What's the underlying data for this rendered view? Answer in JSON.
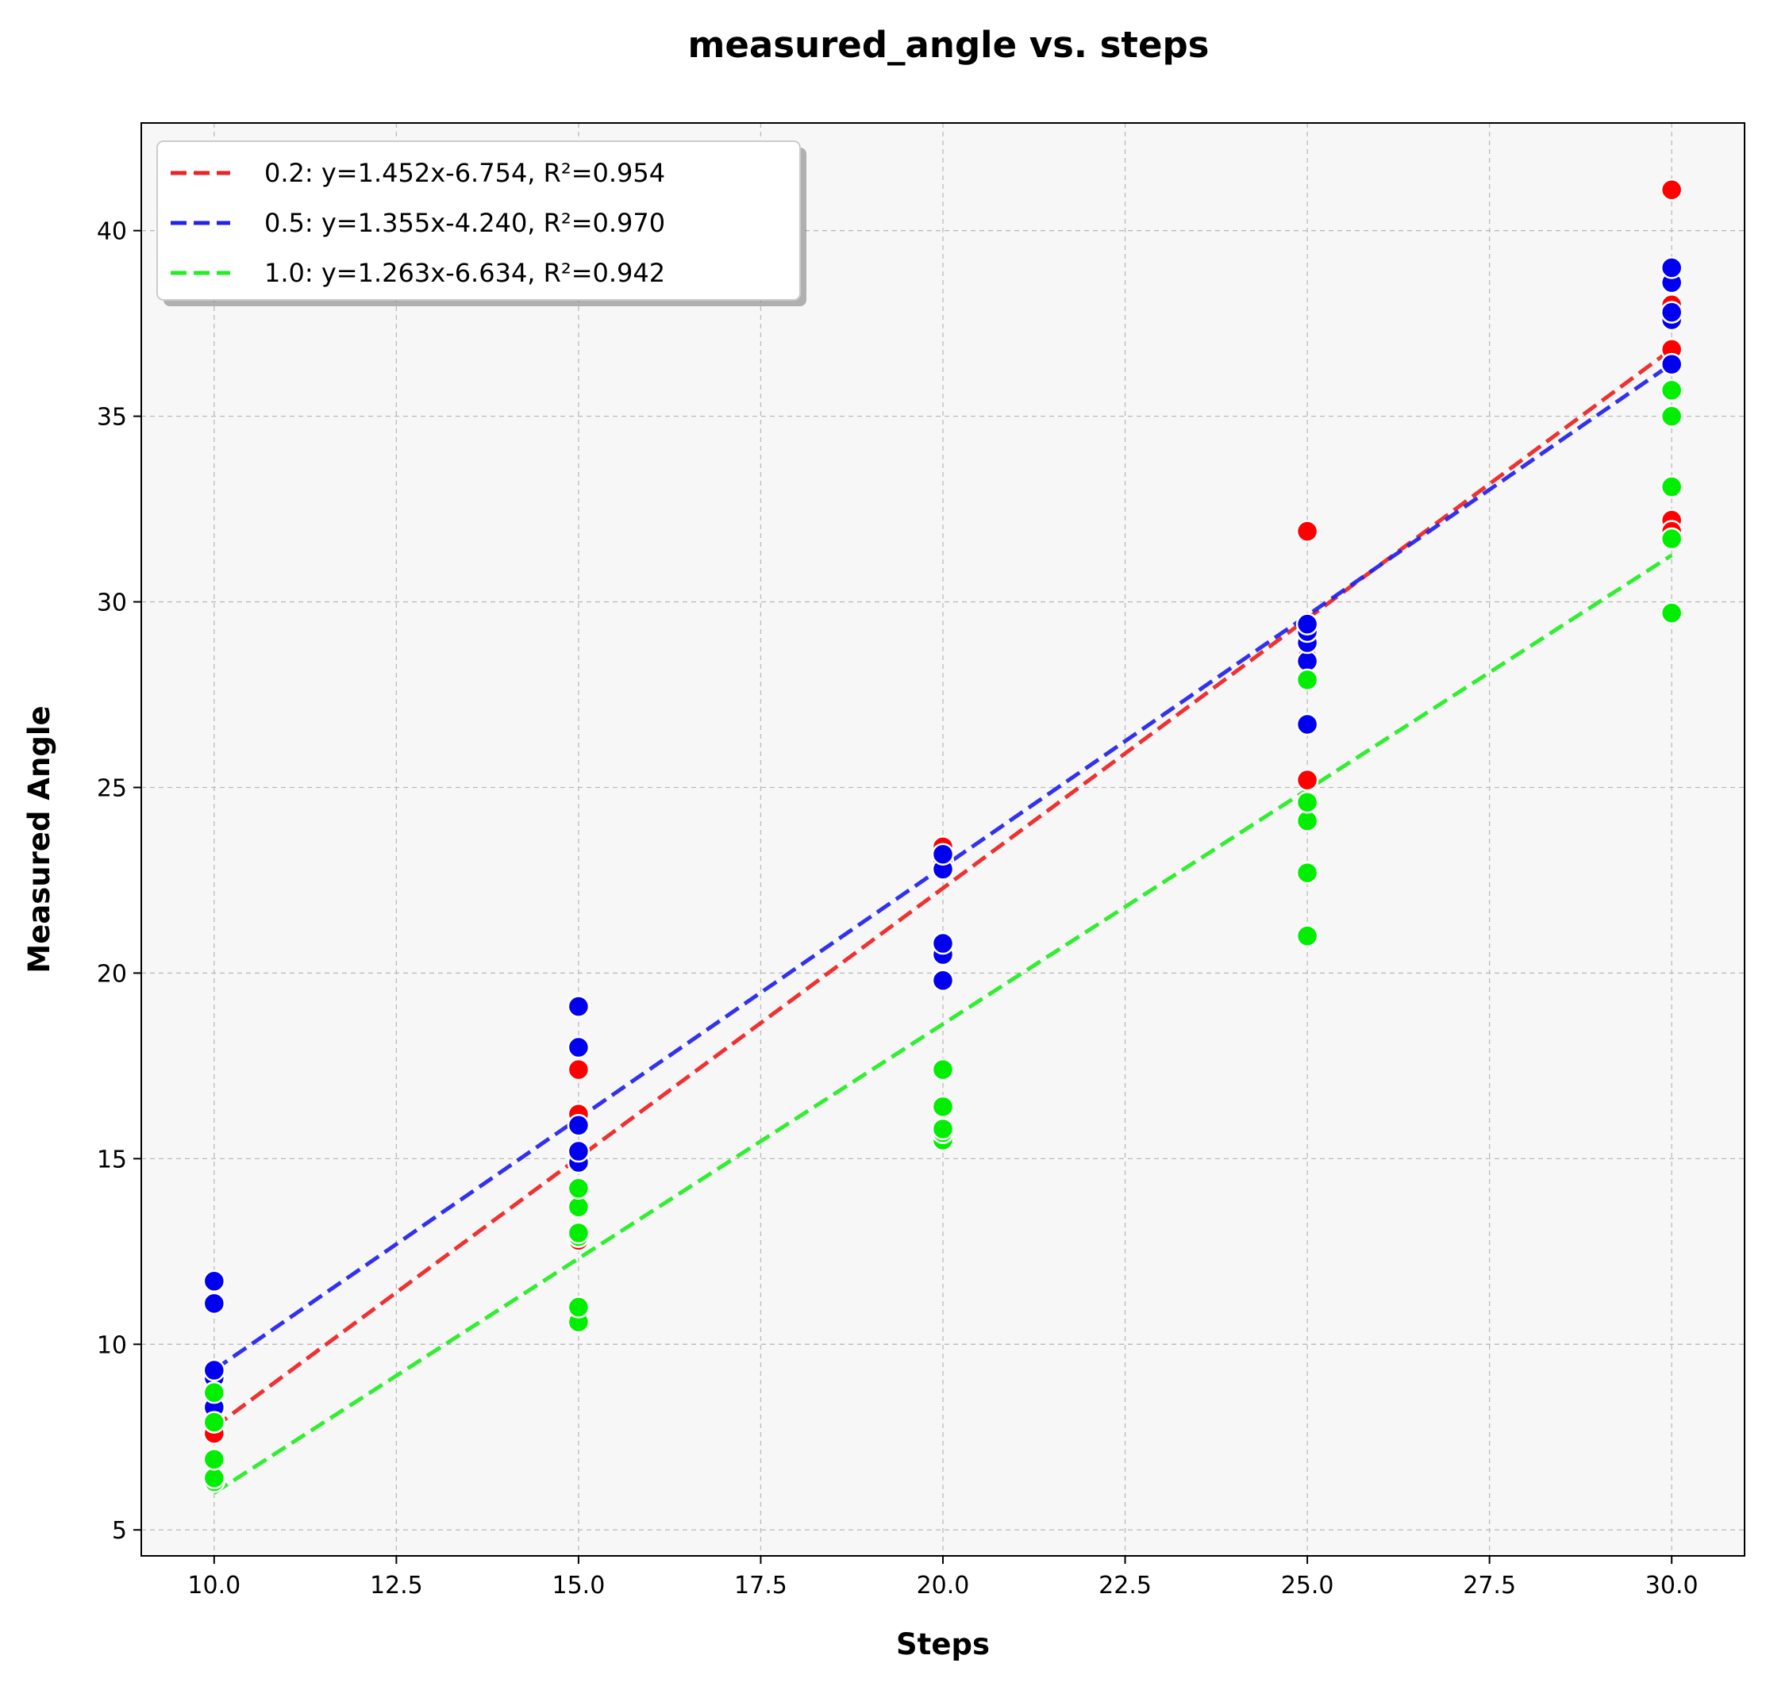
{
  "chart_data": {
    "type": "scatter",
    "title": "measured_angle vs. steps",
    "xlabel": "Steps",
    "ylabel": "Measured Angle",
    "xlim": [
      9.0,
      31.0
    ],
    "ylim": [
      4.3,
      42.9
    ],
    "xticks": [
      10.0,
      12.5,
      15.0,
      17.5,
      20.0,
      22.5,
      25.0,
      27.5,
      30.0
    ],
    "xtick_labels": [
      "10.0",
      "12.5",
      "15.0",
      "17.5",
      "20.0",
      "22.5",
      "25.0",
      "27.5",
      "30.0"
    ],
    "yticks": [
      5,
      10,
      15,
      20,
      25,
      30,
      35,
      40
    ],
    "ytick_labels": [
      "5",
      "10",
      "15",
      "20",
      "25",
      "30",
      "35",
      "40"
    ],
    "grid": true,
    "legend_position": "top-left",
    "series": [
      {
        "key": "0.2",
        "color": "#ff0000",
        "line_color": "#ee2222",
        "fit": {
          "slope": 1.452,
          "intercept": -6.754,
          "r2": 0.954
        },
        "legend_label": "0.2: y=1.452x-6.754, R²=0.954",
        "points": [
          [
            10,
            7.6
          ],
          [
            10,
            7.9
          ],
          [
            10,
            8.2
          ],
          [
            10,
            8.6
          ],
          [
            15,
            12.8
          ],
          [
            15,
            13.0
          ],
          [
            15,
            14.9
          ],
          [
            15,
            16.0
          ],
          [
            15,
            16.2
          ],
          [
            15,
            17.4
          ],
          [
            20,
            20.6
          ],
          [
            20,
            22.8
          ],
          [
            20,
            23.0
          ],
          [
            20,
            23.2
          ],
          [
            20,
            23.4
          ],
          [
            25,
            25.2
          ],
          [
            25,
            28.5
          ],
          [
            25,
            29.0
          ],
          [
            25,
            31.9
          ],
          [
            30,
            32.2
          ],
          [
            30,
            31.9
          ],
          [
            30,
            36.8
          ],
          [
            30,
            37.8
          ],
          [
            30,
            38.0
          ],
          [
            30,
            41.1
          ]
        ]
      },
      {
        "key": "0.5",
        "color": "#0000ee",
        "line_color": "#2222ee",
        "fit": {
          "slope": 1.355,
          "intercept": -4.24,
          "r2": 0.97
        },
        "legend_label": "0.5: y=1.355x-4.240, R²=0.970",
        "points": [
          [
            10,
            8.3
          ],
          [
            10,
            9.1
          ],
          [
            10,
            9.3
          ],
          [
            10,
            11.1
          ],
          [
            10,
            11.7
          ],
          [
            15,
            14.9
          ],
          [
            15,
            15.2
          ],
          [
            15,
            15.9
          ],
          [
            15,
            18.0
          ],
          [
            15,
            19.1
          ],
          [
            20,
            19.8
          ],
          [
            20,
            20.5
          ],
          [
            20,
            20.8
          ],
          [
            20,
            22.8
          ],
          [
            20,
            23.2
          ],
          [
            25,
            26.7
          ],
          [
            25,
            28.4
          ],
          [
            25,
            28.9
          ],
          [
            25,
            29.2
          ],
          [
            25,
            29.4
          ],
          [
            30,
            36.4
          ],
          [
            30,
            37.6
          ],
          [
            30,
            37.8
          ],
          [
            30,
            38.6
          ],
          [
            30,
            39.0
          ]
        ]
      },
      {
        "key": "1.0",
        "color": "#00ee00",
        "line_color": "#22ee22",
        "fit": {
          "slope": 1.263,
          "intercept": -6.634,
          "r2": 0.942
        },
        "legend_label": "1.0: y=1.263x-6.634, R²=0.942",
        "points": [
          [
            10,
            6.3
          ],
          [
            10,
            6.4
          ],
          [
            10,
            6.9
          ],
          [
            10,
            7.9
          ],
          [
            10,
            8.7
          ],
          [
            15,
            10.6
          ],
          [
            15,
            11.0
          ],
          [
            15,
            12.9
          ],
          [
            15,
            13.0
          ],
          [
            15,
            13.7
          ],
          [
            15,
            14.2
          ],
          [
            20,
            15.5
          ],
          [
            20,
            15.7
          ],
          [
            20,
            15.8
          ],
          [
            20,
            16.4
          ],
          [
            20,
            17.4
          ],
          [
            25,
            21.0
          ],
          [
            25,
            22.7
          ],
          [
            25,
            24.1
          ],
          [
            25,
            24.6
          ],
          [
            25,
            27.9
          ],
          [
            30,
            29.7
          ],
          [
            30,
            31.7
          ],
          [
            30,
            33.1
          ],
          [
            30,
            35.0
          ],
          [
            30,
            35.7
          ]
        ]
      }
    ]
  }
}
